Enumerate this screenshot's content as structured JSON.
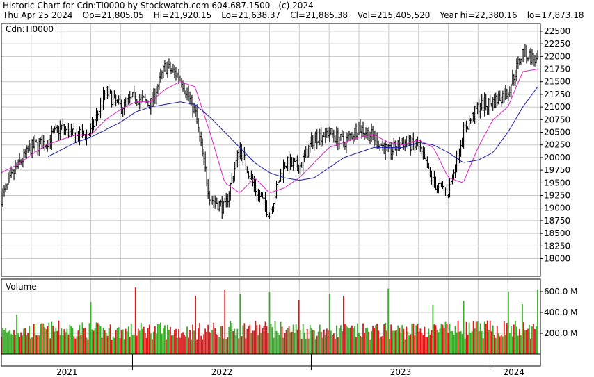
{
  "header": {
    "title": "Historic Chart for Cdn:TI0000 by Stockwatch.com 604.687.1500 - (c) 2024",
    "date": "Thu Apr 25 2024",
    "open": "Op=21,805.05",
    "high": "Hi=21,920.15",
    "low": "Lo=21,638.37",
    "close": "Cl=21,885.38",
    "volume": "Vol=215,405,520",
    "year_high": "Year hi=22,380.16",
    "year_low": "lo=17,873.18"
  },
  "colors": {
    "price_bars": "#000000",
    "ma_short": "#e020c0",
    "ma_long": "#1a1ab0",
    "volume_up": "#3aaa2a",
    "volume_down": "#dd1a1a",
    "grid": "#c8c8c8"
  },
  "chart_data": [
    {
      "type": "line",
      "title": "Cdn:TI0000",
      "ylim": [
        17650,
        22650
      ],
      "y_ticks": [
        "22500",
        "22250",
        "22000",
        "21750",
        "21500",
        "21250",
        "21000",
        "20750",
        "20500",
        "20250",
        "20000",
        "19750",
        "19500",
        "19250",
        "19000",
        "18750",
        "18500",
        "18250",
        "18000"
      ],
      "x_ticks": [
        "2021",
        "2022",
        "2023",
        "2024"
      ],
      "x": [
        "2021-04",
        "2021-05",
        "2021-06",
        "2021-07",
        "2021-08",
        "2021-09",
        "2021-10",
        "2021-11",
        "2021-12",
        "2022-01",
        "2022-02",
        "2022-03",
        "2022-04",
        "2022-05",
        "2022-06",
        "2022-07",
        "2022-08",
        "2022-09",
        "2022-10",
        "2022-11",
        "2022-12",
        "2023-01",
        "2023-02",
        "2023-03",
        "2023-04",
        "2023-05",
        "2023-06",
        "2023-07",
        "2023-08",
        "2023-09",
        "2023-10",
        "2023-11",
        "2023-12",
        "2024-01",
        "2024-02",
        "2024-03",
        "2024-04"
      ],
      "series": [
        {
          "role": "price",
          "values": [
            19200,
            19800,
            20200,
            20300,
            20600,
            20400,
            20500,
            21300,
            21000,
            21200,
            21050,
            21800,
            21600,
            20900,
            19200,
            19000,
            20200,
            19400,
            18900,
            19900,
            19800,
            20400,
            20500,
            20300,
            20600,
            20400,
            20100,
            20300,
            20200,
            19500,
            19300,
            20500,
            21000,
            21100,
            21300,
            22100,
            21885
          ]
        },
        {
          "role": "ma_short",
          "values": [
            19700,
            19850,
            20050,
            20250,
            20350,
            20450,
            20450,
            20750,
            20950,
            21100,
            21100,
            21350,
            21500,
            21400,
            20500,
            19500,
            19300,
            19600,
            19300,
            19400,
            19600,
            19900,
            20200,
            20300,
            20400,
            20450,
            20300,
            20250,
            20350,
            20200,
            19600,
            19500,
            20200,
            20750,
            21000,
            21700,
            21750
          ]
        },
        {
          "role": "ma_long",
          "values": [
            null,
            null,
            null,
            20000,
            20150,
            20300,
            20400,
            20550,
            20700,
            20900,
            21000,
            21050,
            21100,
            21050,
            20800,
            20500,
            20200,
            19900,
            19700,
            19600,
            19550,
            19600,
            19800,
            20000,
            20100,
            20200,
            20200,
            20200,
            20300,
            20250,
            20100,
            19900,
            19950,
            20100,
            20500,
            21000,
            21400
          ]
        }
      ]
    },
    {
      "type": "bar",
      "title": "Volume",
      "ylim": [
        0,
        720
      ],
      "y_ticks": [
        "600.0 M",
        "400.0 M",
        "200.0 M"
      ],
      "value_unit": "M",
      "values": [
        240,
        255,
        250,
        262,
        270,
        268,
        258,
        250,
        245,
        252,
        260,
        255,
        248,
        250,
        258,
        262,
        270,
        275,
        270,
        265,
        262,
        258,
        255,
        250,
        248,
        250,
        255,
        258,
        262,
        260,
        265,
        270,
        268,
        272,
        275,
        270,
        265
      ],
      "spikes": [
        {
          "m": 1,
          "v": 380
        },
        {
          "m": 6,
          "v": 500
        },
        {
          "m": 9,
          "v": 640
        },
        {
          "m": 13,
          "v": 560
        },
        {
          "m": 15,
          "v": 620
        },
        {
          "m": 16,
          "v": 580
        },
        {
          "m": 18,
          "v": 600
        },
        {
          "m": 20,
          "v": 520
        },
        {
          "m": 22,
          "v": 580
        },
        {
          "m": 23,
          "v": 560
        },
        {
          "m": 26,
          "v": 630
        },
        {
          "m": 29,
          "v": 470
        },
        {
          "m": 31,
          "v": 510
        },
        {
          "m": 34,
          "v": 600
        },
        {
          "m": 35,
          "v": 480
        },
        {
          "m": 36,
          "v": 620
        }
      ]
    }
  ]
}
